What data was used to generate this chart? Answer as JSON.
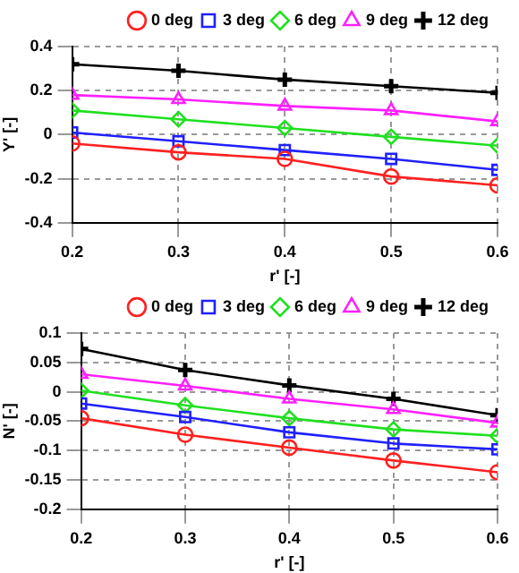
{
  "chart_data": [
    {
      "type": "line",
      "xlabel": "r' [-]",
      "ylabel": "Y' [-]",
      "x": [
        0.2,
        0.3,
        0.4,
        0.5,
        0.6
      ],
      "xlim": [
        0.2,
        0.6
      ],
      "xticks": [
        0.2,
        0.3,
        0.4,
        0.5,
        0.6
      ],
      "ylim": [
        -0.4,
        0.4
      ],
      "yticks": [
        -0.4,
        -0.2,
        0,
        0.2,
        0.4
      ],
      "grid": true,
      "legend": "top right",
      "line_style": "solid",
      "series": [
        {
          "name": "0 deg",
          "color": "#ff2020",
          "marker": "circle",
          "values": [
            -0.04,
            -0.08,
            -0.11,
            -0.19,
            -0.23
          ]
        },
        {
          "name": "3 deg",
          "color": "#2020ff",
          "marker": "square",
          "values": [
            0.01,
            -0.03,
            -0.07,
            -0.11,
            -0.16
          ]
        },
        {
          "name": "6 deg",
          "color": "#20e020",
          "marker": "diamond",
          "values": [
            0.11,
            0.07,
            0.03,
            -0.01,
            -0.05
          ]
        },
        {
          "name": "9 deg",
          "color": "#ff20ff",
          "marker": "triangle",
          "values": [
            0.18,
            0.16,
            0.13,
            0.11,
            0.06
          ]
        },
        {
          "name": "12 deg",
          "color": "#000000",
          "marker": "cross",
          "values": [
            0.32,
            0.29,
            0.25,
            0.22,
            0.19
          ]
        }
      ]
    },
    {
      "type": "line",
      "xlabel": "r' [-]",
      "ylabel": "N' [-]",
      "x": [
        0.2,
        0.3,
        0.4,
        0.5,
        0.6
      ],
      "xlim": [
        0.2,
        0.6
      ],
      "xticks": [
        0.2,
        0.3,
        0.4,
        0.5,
        0.6
      ],
      "ylim": [
        -0.2,
        0.1
      ],
      "yticks": [
        -0.2,
        -0.15,
        -0.1,
        -0.05,
        0,
        0.05,
        0.1
      ],
      "grid": true,
      "legend": "top right",
      "line_style": "solid",
      "series": [
        {
          "name": "0 deg",
          "color": "#ff2020",
          "marker": "circle",
          "values": [
            -0.045,
            -0.073,
            -0.095,
            -0.117,
            -0.137
          ]
        },
        {
          "name": "3 deg",
          "color": "#2020ff",
          "marker": "square",
          "values": [
            -0.02,
            -0.043,
            -0.069,
            -0.088,
            -0.098
          ]
        },
        {
          "name": "6 deg",
          "color": "#20e020",
          "marker": "diamond",
          "values": [
            0.002,
            -0.023,
            -0.045,
            -0.064,
            -0.075
          ]
        },
        {
          "name": "9 deg",
          "color": "#ff20ff",
          "marker": "triangle",
          "values": [
            0.03,
            0.01,
            -0.012,
            -0.03,
            -0.053
          ]
        },
        {
          "name": "12 deg",
          "color": "#000000",
          "marker": "cross",
          "values": [
            0.073,
            0.037,
            0.011,
            -0.012,
            -0.04
          ]
        }
      ]
    }
  ]
}
